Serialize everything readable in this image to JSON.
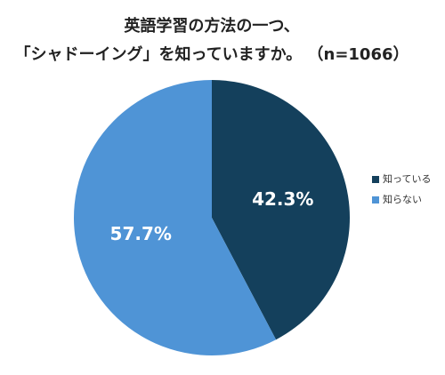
{
  "chart_data": {
    "type": "pie",
    "title": [
      "英語学習の方法の一つ、",
      "「シャドーイング」を知っていますか。 （n=1066）"
    ],
    "categories": [
      "知っている",
      "知らない"
    ],
    "values": [
      42.3,
      57.7
    ],
    "value_labels": [
      "42.3%",
      "57.7%"
    ],
    "colors": [
      "#14405c",
      "#4f94d6"
    ],
    "legend": "right"
  }
}
